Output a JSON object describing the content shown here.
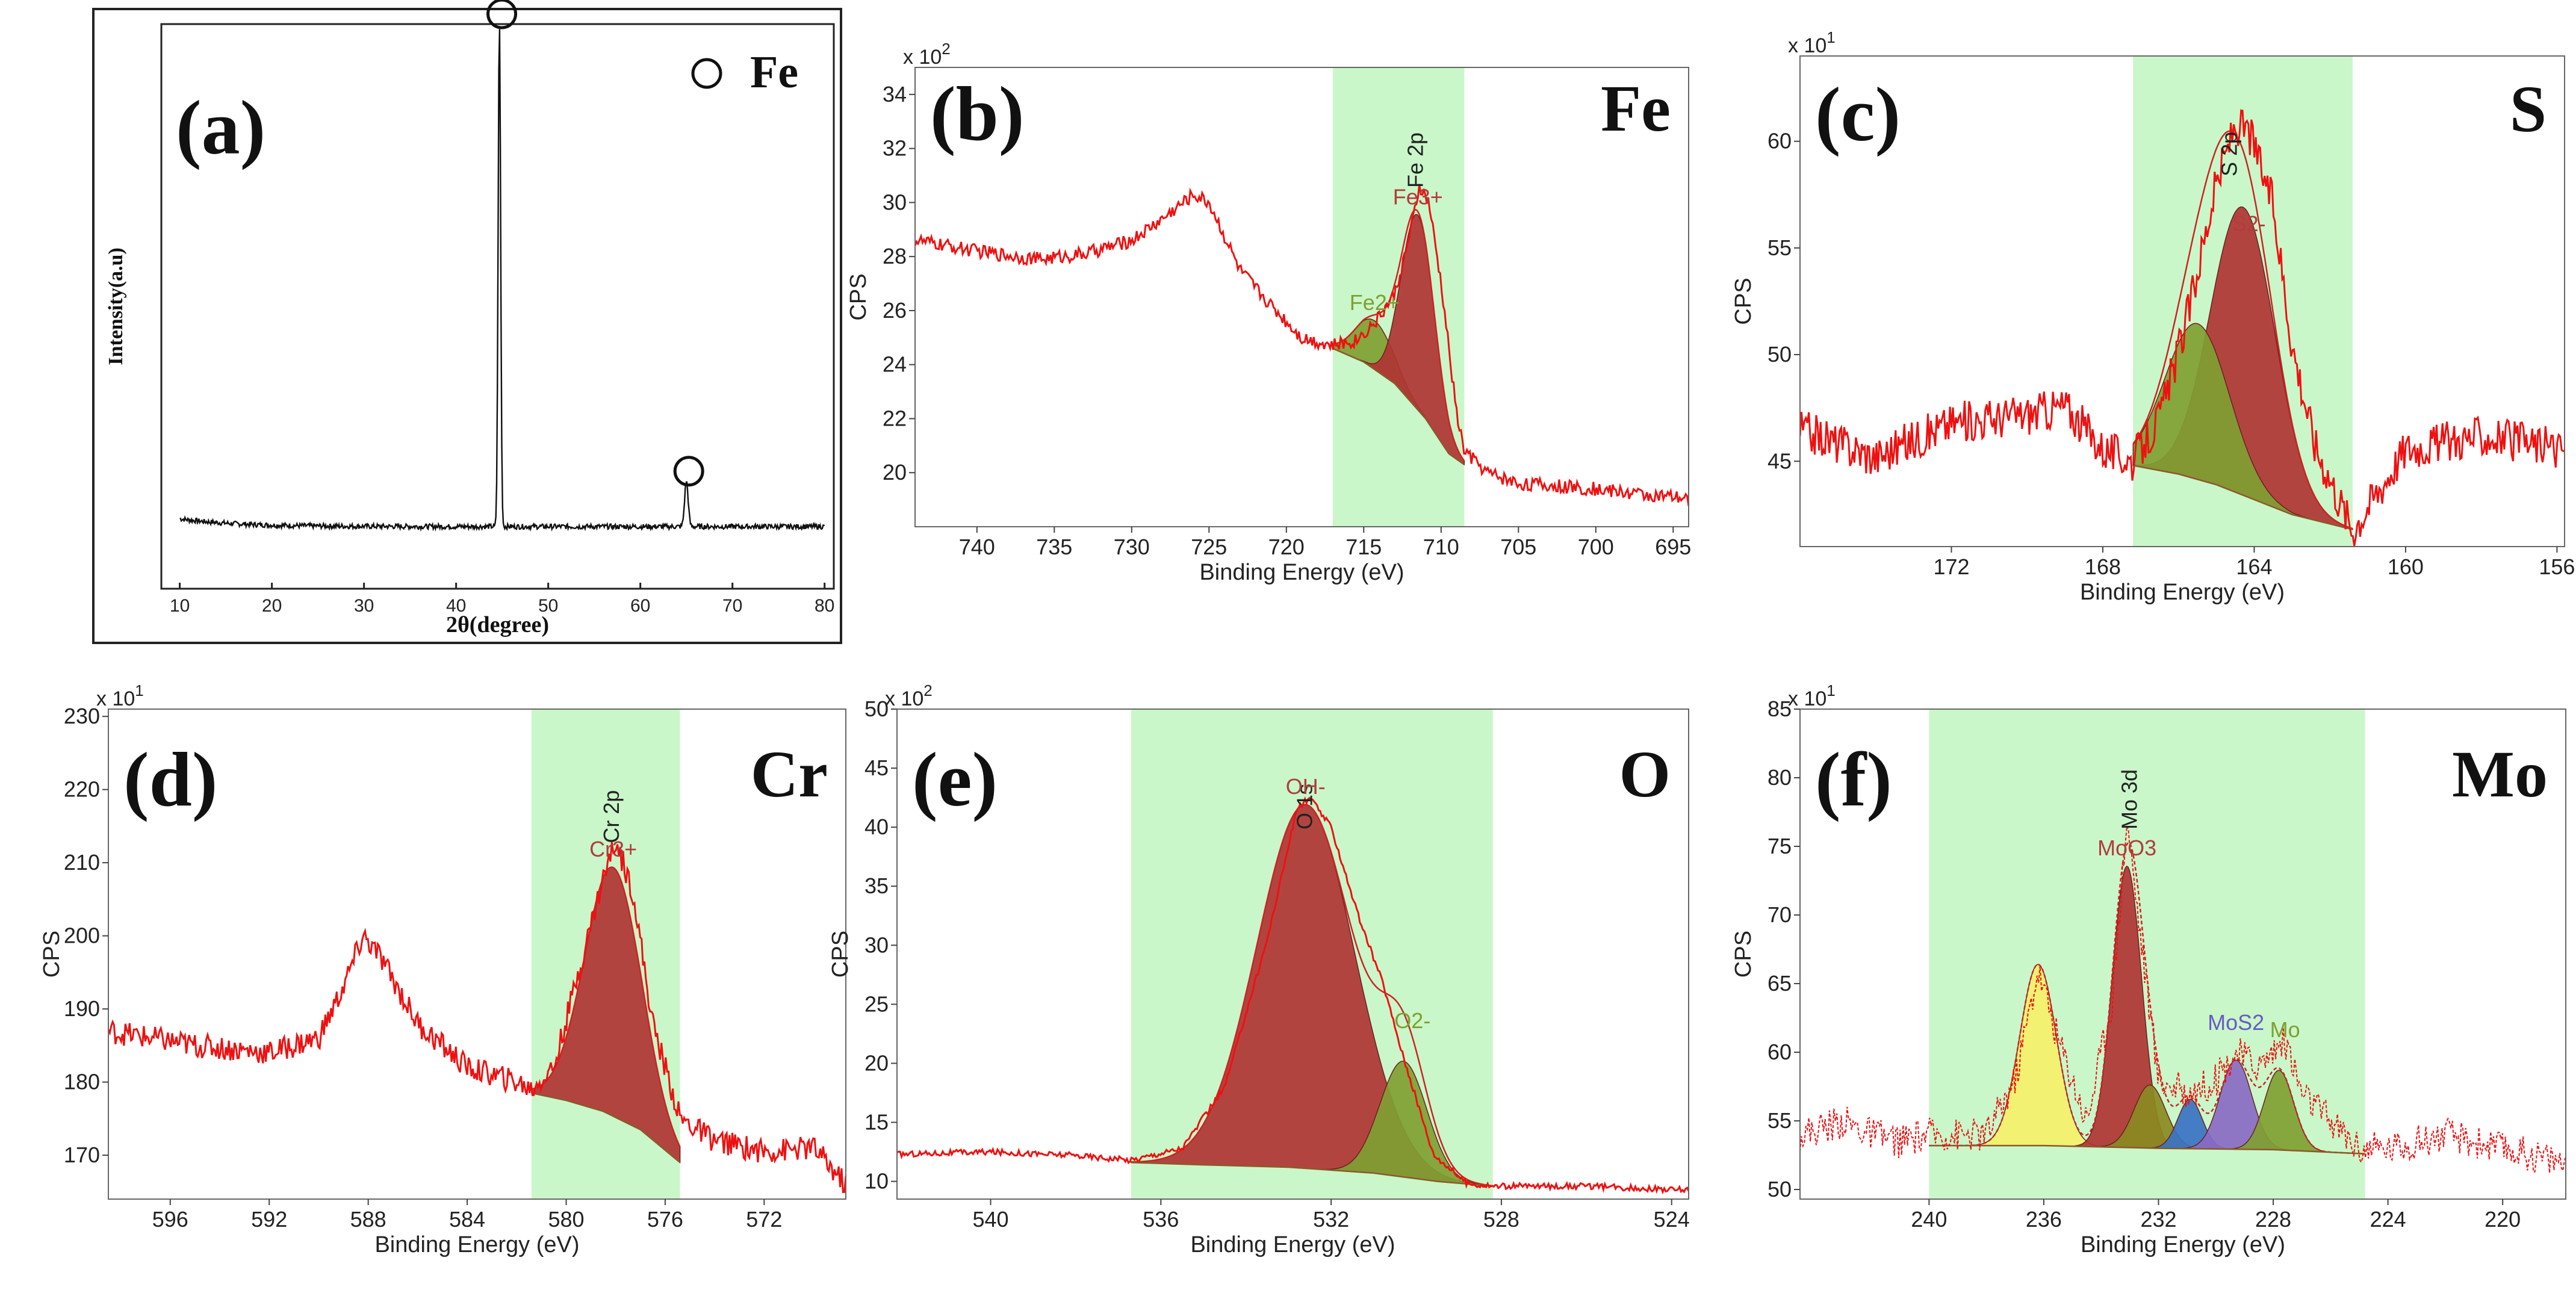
{
  "figure": {
    "background": "#ffffff"
  },
  "colors": {
    "xrd_line": "#111111",
    "spectrum": "#ee1111",
    "region_fill": "#c9f7c9",
    "peak_red": "#b03434",
    "peak_green": "#7fa032",
    "peak_yellow": "#f5f06a",
    "peak_olive": "#8a8a22",
    "peak_blue": "#3a72c4",
    "peak_purple": "#8a6ac4",
    "text_dark": "#222222",
    "label_red": "#b23c3c",
    "label_green": "#7fa032",
    "label_purple": "#6a5ac4"
  },
  "chart_data": [
    {
      "panel": "(a)",
      "type": "line",
      "element": "Fe",
      "legend": "Fe",
      "legend_marker": "circle",
      "xlabel": "2θ(degree)",
      "ylabel": "Intensity(a.u)",
      "xlim": [
        8,
        81
      ],
      "ylim": [
        0,
        100
      ],
      "xticks": [
        10,
        20,
        30,
        40,
        50,
        60,
        70,
        80
      ],
      "baseline": 11,
      "peaks": [
        {
          "x": 44.7,
          "height": 100,
          "marker": "circle"
        },
        {
          "x": 65.0,
          "height": 19,
          "marker": "circle"
        }
      ]
    },
    {
      "panel": "(b)",
      "type": "area",
      "element": "Fe",
      "core_level": "Fe 2p",
      "xlabel": "Binding Energy (eV)",
      "ylabel": "CPS",
      "multiplier": "x 10^2",
      "multiplier_base": "x 10",
      "multiplier_exp": "2",
      "xlim": [
        744,
        694
      ],
      "ylim": [
        18,
        35
      ],
      "xticks": [
        740,
        735,
        730,
        725,
        720,
        715,
        710,
        705,
        700,
        695
      ],
      "yticks": [
        20,
        22,
        24,
        26,
        28,
        30,
        32,
        34
      ],
      "region": [
        717,
        708.5
      ],
      "spectrum_points": [
        [
          744,
          28.6
        ],
        [
          740,
          28.2
        ],
        [
          736,
          27.9
        ],
        [
          733,
          28.1
        ],
        [
          730,
          28.6
        ],
        [
          728,
          29.4
        ],
        [
          726,
          30.3
        ],
        [
          725,
          30.0
        ],
        [
          723,
          27.5
        ],
        [
          721,
          26.2
        ],
        [
          719,
          25.0
        ],
        [
          717,
          24.7
        ],
        [
          715.5,
          24.9
        ],
        [
          714.2,
          25.6
        ],
        [
          713,
          26.6
        ],
        [
          712,
          28.8
        ],
        [
          711.4,
          30.6
        ],
        [
          710.8,
          30.0
        ],
        [
          710,
          27.0
        ],
        [
          709,
          22.2
        ],
        [
          708.5,
          20.8
        ],
        [
          707,
          20.0
        ],
        [
          705,
          19.6
        ],
        [
          700,
          19.4
        ],
        [
          694,
          19.0
        ]
      ],
      "background_points": [
        [
          717,
          24.6
        ],
        [
          715,
          24.1
        ],
        [
          713,
          23.3
        ],
        [
          711,
          22.0
        ],
        [
          709.5,
          20.7
        ],
        [
          708.5,
          20.3
        ]
      ],
      "components": [
        {
          "label": "Fe2+",
          "center": 714.3,
          "fwhm": 2.9,
          "amplitude": 1.8,
          "color_key": "peak_green",
          "label_color_key": "label_green"
        },
        {
          "label": "Fe3+",
          "center": 711.5,
          "fwhm": 2.5,
          "amplitude": 7.2,
          "color_key": "peak_red",
          "label_color_key": "label_red"
        }
      ]
    },
    {
      "panel": "(c)",
      "type": "area",
      "element": "S",
      "core_level": "S 2p",
      "xlabel": "Binding Energy (eV)",
      "ylabel": "CPS",
      "multiplier": "x 10^1",
      "multiplier_base": "x 10",
      "multiplier_exp": "1",
      "xlim": [
        176,
        155.8
      ],
      "ylim": [
        41,
        64
      ],
      "xticks": [
        172,
        168,
        164,
        160,
        156
      ],
      "yticks": [
        45,
        50,
        55,
        60
      ],
      "region": [
        167.2,
        161.4
      ],
      "spectrum_points": [
        [
          176,
          46.5
        ],
        [
          174,
          45.2
        ],
        [
          172,
          46.8
        ],
        [
          170,
          47.2
        ],
        [
          169,
          47.6
        ],
        [
          168,
          45.6
        ],
        [
          167.2,
          45.0
        ],
        [
          166.5,
          47.0
        ],
        [
          165.8,
          51.5
        ],
        [
          165,
          58.0
        ],
        [
          164.5,
          60.8
        ],
        [
          164.1,
          60.3
        ],
        [
          163.5,
          57.0
        ],
        [
          163,
          50.5
        ],
        [
          162.4,
          45.8
        ],
        [
          161.8,
          43.4
        ],
        [
          161.4,
          41.8
        ],
        [
          160,
          45.6
        ],
        [
          158,
          46.2
        ],
        [
          156,
          45.6
        ]
      ],
      "background_points": [
        [
          167.2,
          44.8
        ],
        [
          166,
          44.4
        ],
        [
          165,
          43.9
        ],
        [
          164,
          43.2
        ],
        [
          163,
          42.5
        ],
        [
          161.4,
          41.8
        ]
      ],
      "components": [
        {
          "label": "S2-",
          "center": 164.3,
          "fwhm": 2.0,
          "amplitude": 13.5,
          "color_key": "peak_red",
          "label_color_key": "label_red"
        },
        {
          "label": "",
          "center": 165.5,
          "fwhm": 2.0,
          "amplitude": 7.3,
          "color_key": "peak_green",
          "label_color_key": "label_green"
        }
      ]
    },
    {
      "panel": "(d)",
      "type": "area",
      "element": "Cr",
      "core_level": "Cr 2p",
      "xlabel": "Binding Energy (eV)",
      "ylabel": "CPS",
      "multiplier": "x 10^1",
      "multiplier_base": "x 10",
      "multiplier_exp": "1",
      "xlim": [
        598.5,
        568.7
      ],
      "ylim": [
        164,
        231
      ],
      "xticks": [
        596,
        592,
        588,
        584,
        580,
        576,
        572
      ],
      "yticks": [
        170,
        180,
        190,
        200,
        210,
        220,
        230
      ],
      "region": [
        581.4,
        575.4
      ],
      "spectrum_points": [
        [
          598.5,
          187
        ],
        [
          595,
          185
        ],
        [
          592,
          184
        ],
        [
          590,
          186
        ],
        [
          589,
          193
        ],
        [
          588.2,
          200
        ],
        [
          587.5,
          197
        ],
        [
          586,
          188
        ],
        [
          584,
          182
        ],
        [
          582,
          180
        ],
        [
          581.4,
          179
        ],
        [
          580.5,
          182
        ],
        [
          579.5,
          195
        ],
        [
          578.5,
          208
        ],
        [
          578,
          213
        ],
        [
          577.3,
          206
        ],
        [
          576.5,
          188
        ],
        [
          575.4,
          175
        ],
        [
          574,
          172
        ],
        [
          572,
          170.5
        ],
        [
          570,
          171
        ],
        [
          568.7,
          166
        ]
      ],
      "background_points": [
        [
          581.4,
          178.5
        ],
        [
          580,
          177.5
        ],
        [
          578.5,
          176
        ],
        [
          577,
          173.5
        ],
        [
          575.4,
          169
        ]
      ],
      "components": [
        {
          "label": "Cr3+",
          "center": 578.1,
          "fwhm": 2.7,
          "amplitude": 34,
          "color_key": "peak_red",
          "label_color_key": "label_red"
        }
      ]
    },
    {
      "panel": "(e)",
      "type": "area",
      "element": "O",
      "core_level": "O 1s",
      "xlabel": "Binding Energy (eV)",
      "ylabel": "CPS",
      "multiplier": "x 10^2",
      "multiplier_base": "x 10",
      "multiplier_exp": "2",
      "xlim": [
        542.2,
        523.6
      ],
      "ylim": [
        8.5,
        50
      ],
      "xticks": [
        540,
        536,
        532,
        528,
        524
      ],
      "yticks": [
        10,
        15,
        20,
        25,
        30,
        35,
        40,
        45,
        50
      ],
      "region": [
        536.7,
        528.2
      ],
      "spectrum_points": [
        [
          542.2,
          12.3
        ],
        [
          540,
          12.5
        ],
        [
          538,
          12.2
        ],
        [
          536.7,
          11.8
        ],
        [
          535.5,
          12.8
        ],
        [
          534.5,
          18.0
        ],
        [
          533.5,
          30.5
        ],
        [
          532.8,
          41.6
        ],
        [
          532.5,
          42.5
        ],
        [
          532,
          40.0
        ],
        [
          531.3,
          31.8
        ],
        [
          530.8,
          27.0
        ],
        [
          530.3,
          20.5
        ],
        [
          529.6,
          12.3
        ],
        [
          528.8,
          9.8
        ],
        [
          528.2,
          9.6
        ],
        [
          526,
          9.6
        ],
        [
          524,
          9.3
        ]
      ],
      "background_points": [
        [
          536.7,
          11.6
        ],
        [
          535,
          11.4
        ],
        [
          533,
          11.2
        ],
        [
          531,
          10.7
        ],
        [
          529.5,
          10.0
        ],
        [
          528.2,
          9.6
        ]
      ],
      "components": [
        {
          "label": "OH-",
          "center": 532.6,
          "fwhm": 2.7,
          "amplitude": 30.8,
          "color_key": "peak_red",
          "label_color_key": "label_red"
        },
        {
          "label": "O2-",
          "center": 530.3,
          "fwhm": 1.3,
          "amplitude": 9.8,
          "color_key": "peak_green",
          "label_color_key": "label_green"
        }
      ]
    },
    {
      "panel": "(f)",
      "type": "area",
      "element": "Mo",
      "core_level": "Mo 3d",
      "xlabel": "Binding Energy (eV)",
      "ylabel": "CPS",
      "multiplier": "x 10^1",
      "multiplier_base": "x 10",
      "multiplier_exp": "1",
      "xlim": [
        244.5,
        217.8
      ],
      "ylim": [
        49.3,
        85
      ],
      "xticks": [
        240,
        236,
        232,
        228,
        224,
        220
      ],
      "yticks": [
        50,
        55,
        60,
        65,
        70,
        75,
        80,
        85
      ],
      "region": [
        240,
        224.8
      ],
      "spectrum_points": [
        [
          244.5,
          54
        ],
        [
          243,
          55
        ],
        [
          242,
          54
        ],
        [
          241,
          53.5
        ],
        [
          240,
          54
        ],
        [
          238,
          54
        ],
        [
          237,
          58
        ],
        [
          236.2,
          66
        ],
        [
          235.5,
          61
        ],
        [
          234.5,
          55
        ],
        [
          233.6,
          64
        ],
        [
          233.1,
          77
        ],
        [
          232.6,
          68
        ],
        [
          232,
          58
        ],
        [
          231,
          57
        ],
        [
          230,
          58
        ],
        [
          229.3,
          60
        ],
        [
          228.5,
          59
        ],
        [
          227.6,
          61
        ],
        [
          227,
          57
        ],
        [
          226,
          55
        ],
        [
          225,
          53
        ],
        [
          224,
          53
        ],
        [
          222,
          54
        ],
        [
          220,
          53
        ],
        [
          217.8,
          52
        ]
      ],
      "background_points": [
        [
          240,
          53.2
        ],
        [
          236,
          53.2
        ],
        [
          232,
          53.0
        ],
        [
          228,
          52.9
        ],
        [
          224.8,
          52.6
        ]
      ],
      "components": [
        {
          "label": "",
          "center": 236.2,
          "fwhm": 1.5,
          "amplitude": 13.2,
          "color_key": "peak_yellow",
          "label_color_key": "label_red"
        },
        {
          "label": "MoO3",
          "center": 233.1,
          "fwhm": 1.2,
          "amplitude": 20.5,
          "color_key": "peak_red",
          "label_color_key": "label_red"
        },
        {
          "label": "",
          "center": 232.3,
          "fwhm": 1.3,
          "amplitude": 4.6,
          "color_key": "peak_olive",
          "label_color_key": "label_green"
        },
        {
          "label": "",
          "center": 230.9,
          "fwhm": 1.0,
          "amplitude": 3.6,
          "color_key": "peak_blue",
          "label_color_key": "label_purple"
        },
        {
          "label": "MoS2",
          "center": 229.3,
          "fwhm": 1.3,
          "amplitude": 6.5,
          "color_key": "peak_purple",
          "label_color_key": "label_purple"
        },
        {
          "label": "Mo",
          "center": 227.8,
          "fwhm": 1.2,
          "amplitude": 5.8,
          "color_key": "peak_green",
          "label_color_key": "label_green"
        }
      ]
    }
  ]
}
